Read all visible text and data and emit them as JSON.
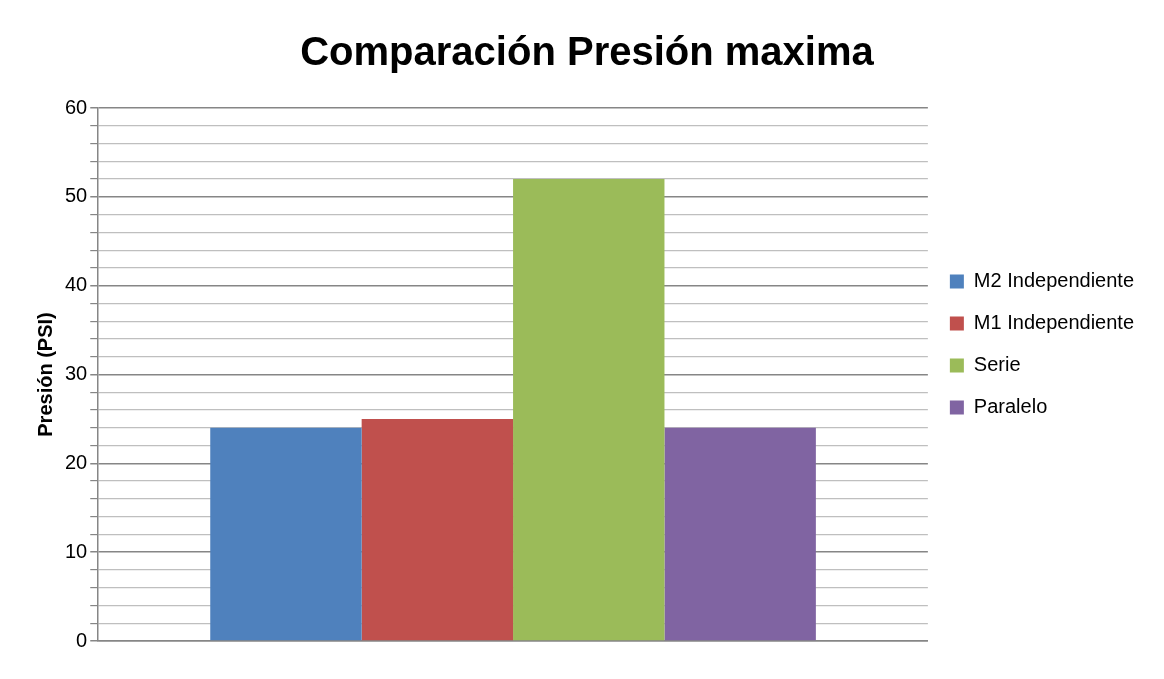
{
  "chart_data": {
    "type": "bar",
    "title": "Comparación Presión maxima",
    "ylabel": "Presión (PSI)",
    "categories": [
      null
    ],
    "series": [
      {
        "name": "M2 Independiente",
        "color": "#4f81bd",
        "values": [
          24
        ]
      },
      {
        "name": "M1 Independiente",
        "color": "#c0504d",
        "values": [
          25
        ]
      },
      {
        "name": "Serie",
        "color": "#9bbb59",
        "values": [
          52
        ]
      },
      {
        "name": "Paralelo",
        "color": "#8064a2",
        "values": [
          24
        ]
      }
    ],
    "ylim": [
      0,
      60
    ],
    "yticks": [
      0,
      {
        "value": 2,
        "label": null
      },
      {
        "value": 4,
        "label": null
      },
      {
        "value": 6,
        "label": null
      },
      {
        "value": 8,
        "label": null
      },
      10,
      {
        "value": 12,
        "label": null
      },
      {
        "value": 14,
        "label": null
      },
      {
        "value": 16,
        "label": null
      },
      {
        "value": 18,
        "label": null
      },
      20,
      {
        "value": 22,
        "label": null
      },
      {
        "value": 24,
        "label": null
      },
      {
        "value": 26,
        "label": null
      },
      {
        "value": 28,
        "label": null
      },
      30,
      {
        "value": 32,
        "label": null
      },
      {
        "value": 34,
        "label": null
      },
      {
        "value": 36,
        "label": null
      },
      {
        "value": 38,
        "label": null
      },
      40,
      {
        "value": 42,
        "label": null
      },
      {
        "value": 44,
        "label": null
      },
      {
        "value": 46,
        "label": null
      },
      {
        "value": 48,
        "label": null
      },
      50,
      {
        "value": 52,
        "label": null
      },
      {
        "value": 54,
        "label": null
      },
      {
        "value": 56,
        "label": null
      },
      {
        "value": 58,
        "label": null
      },
      60
    ],
    "grid": true,
    "legend": "right"
  }
}
